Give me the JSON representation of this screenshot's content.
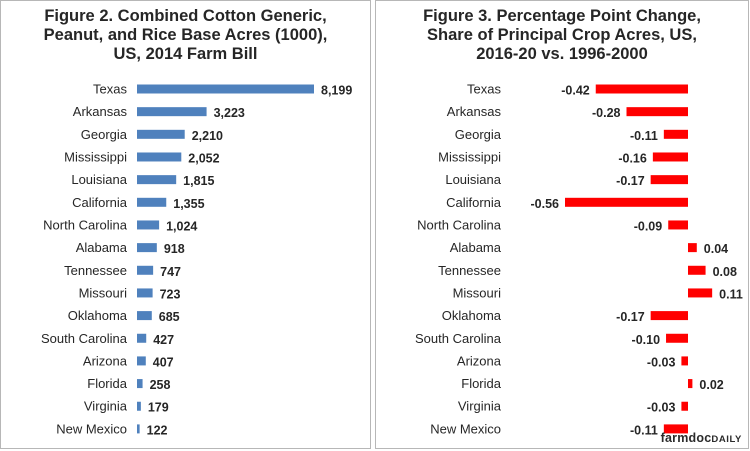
{
  "chart_data": [
    {
      "type": "bar",
      "orientation": "horizontal",
      "title_lines": [
        "Figure 2. Combined Cotton Generic,",
        "Peanut, and Rice Base Acres (1000),",
        "US, 2014 Farm Bill"
      ],
      "categories": [
        "Texas",
        "Arkansas",
        "Georgia",
        "Mississippi",
        "Louisiana",
        "California",
        "North Carolina",
        "Alabama",
        "Tennessee",
        "Missouri",
        "Oklahoma",
        "South Carolina",
        "Arizona",
        "Florida",
        "Virginia",
        "New Mexico"
      ],
      "values": [
        8199,
        3223,
        2210,
        2052,
        1815,
        1355,
        1024,
        918,
        747,
        723,
        685,
        427,
        407,
        258,
        179,
        122
      ],
      "value_labels": [
        "8,199",
        "3,223",
        "2,210",
        "2,052",
        "1,815",
        "1,355",
        "1,024",
        "918",
        "747",
        "723",
        "685",
        "427",
        "407",
        "258",
        "179",
        "122"
      ],
      "xlim": [
        0,
        8199
      ],
      "bar_color": "#4f81bd",
      "grid": false,
      "legend": "none"
    },
    {
      "type": "bar",
      "orientation": "horizontal",
      "title_lines": [
        "Figure 3.  Percentage Point Change,",
        "Share of Principal Crop Acres, US,",
        "2016-20 vs. 1996-2000"
      ],
      "categories": [
        "Texas",
        "Arkansas",
        "Georgia",
        "Mississippi",
        "Louisiana",
        "California",
        "North Carolina",
        "Alabama",
        "Tennessee",
        "Missouri",
        "Oklahoma",
        "South Carolina",
        "Arizona",
        "Florida",
        "Virginia",
        "New Mexico"
      ],
      "values": [
        -0.42,
        -0.28,
        -0.11,
        -0.16,
        -0.17,
        -0.56,
        -0.09,
        0.04,
        0.08,
        0.11,
        -0.17,
        -0.1,
        -0.03,
        0.02,
        -0.03,
        -0.11
      ],
      "value_labels": [
        "-0.42",
        "-0.28",
        "-0.11",
        "-0.16",
        "-0.17",
        "-0.56",
        "-0.09",
        "0.04",
        "0.08",
        "0.11",
        "-0.17",
        "-0.10",
        "-0.03",
        "0.02",
        "-0.03",
        "-0.11"
      ],
      "xlim": [
        -0.56,
        0.11
      ],
      "bar_color": "#ff0000",
      "grid": false,
      "legend": "none"
    }
  ],
  "branding": {
    "main": "farmdoc",
    "suffix": "DAILY"
  }
}
